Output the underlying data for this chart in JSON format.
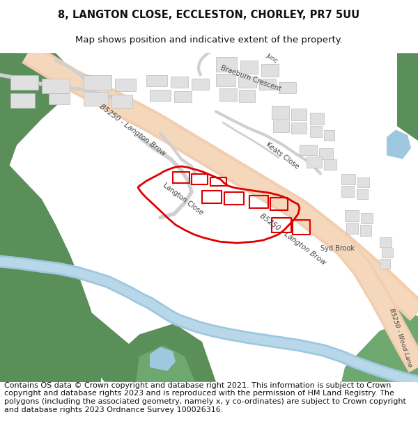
{
  "title_line1": "8, LANGTON CLOSE, ECCLESTON, CHORLEY, PR7 5UU",
  "title_line2": "Map shows position and indicative extent of the property.",
  "footer": "Contains OS data © Crown copyright and database right 2021. This information is subject to Crown copyright and database rights 2023 and is reproduced with the permission of HM Land Registry. The polygons (including the associated geometry, namely x, y co-ordinates) are subject to Crown copyright and database rights 2023 Ordnance Survey 100026316.",
  "title_fontsize": 10.5,
  "subtitle_fontsize": 9.5,
  "footer_fontsize": 8.0,
  "bg_color": "#ffffff",
  "map_bg": "#f7f7f7",
  "road_color": "#f2cdb0",
  "water_color": "#9ec8e0",
  "green_dark": "#5a8f5a",
  "green_mid": "#6fa86f",
  "building_color": "#e0e0e0",
  "building_outline": "#bbbbbb",
  "road_line_color": "#cccccc",
  "red_outline": "#dd0000",
  "label_color": "#444444"
}
